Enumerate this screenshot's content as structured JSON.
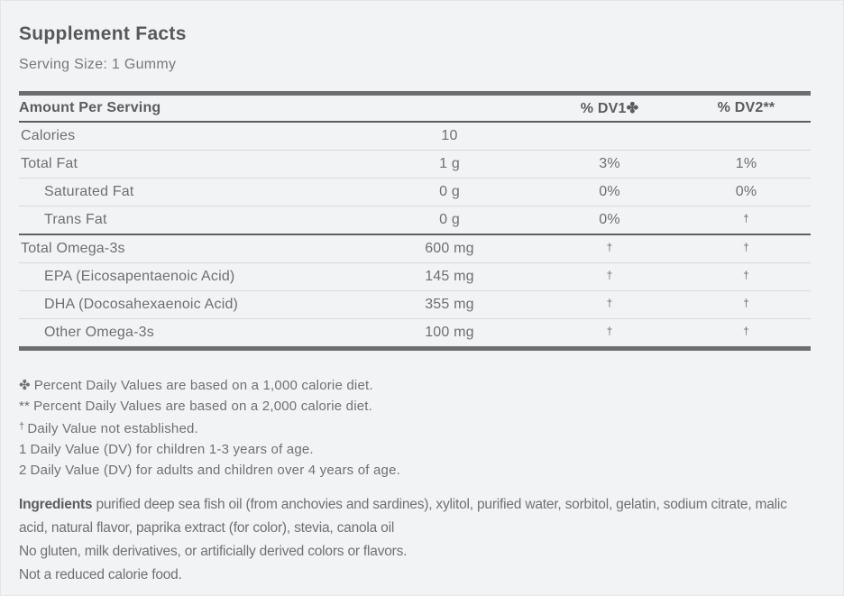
{
  "colors": {
    "background": "#f2f3f4",
    "heading_text": "#58585b",
    "body_text": "#6e6f72",
    "thick_rule": "#6d6e71",
    "dark_rule": "#606165",
    "thin_rule": "#d9dadb"
  },
  "header": {
    "title": "Supplement Facts",
    "serving_size": "Serving Size: 1 Gummy"
  },
  "table": {
    "amount_header": "Amount Per Serving",
    "dv1_header": "% DV1✤",
    "dv2_header": "% DV2**",
    "rows": [
      {
        "label": "Calories",
        "indent": false,
        "amount": "10",
        "dv1": "",
        "dv2": "",
        "divider": "thin"
      },
      {
        "label": "Total Fat",
        "indent": false,
        "amount": "1 g",
        "dv1": "3%",
        "dv2": "1%",
        "divider": "thin"
      },
      {
        "label": "Saturated Fat",
        "indent": true,
        "amount": "0 g",
        "dv1": "0%",
        "dv2": "0%",
        "divider": "thin"
      },
      {
        "label": "Trans Fat",
        "indent": true,
        "amount": "0 g",
        "dv1": "0%",
        "dv2": "†",
        "divider": "dark"
      },
      {
        "label": "Total Omega-3s",
        "indent": false,
        "amount": "600 mg",
        "dv1": "†",
        "dv2": "†",
        "divider": "thin"
      },
      {
        "label": "EPA (Eicosapentaenoic Acid)",
        "indent": true,
        "amount": "145 mg",
        "dv1": "†",
        "dv2": "†",
        "divider": "thin"
      },
      {
        "label": "DHA (Docosahexaenoic Acid)",
        "indent": true,
        "amount": "355 mg",
        "dv1": "†",
        "dv2": "†",
        "divider": "thin"
      },
      {
        "label": "Other Omega-3s",
        "indent": true,
        "amount": "100 mg",
        "dv1": "†",
        "dv2": "†",
        "divider": "none"
      }
    ]
  },
  "footnotes": [
    {
      "symbol": "✤",
      "small_symbol": false,
      "text": "Percent Daily Values are based on a 1,000 calorie diet."
    },
    {
      "symbol": "**",
      "small_symbol": false,
      "text": "Percent Daily Values are based on a 2,000 calorie diet."
    },
    {
      "symbol": "†",
      "small_symbol": true,
      "text": "Daily Value not established."
    },
    {
      "symbol": "1",
      "small_symbol": false,
      "text": "Daily Value (DV) for children 1-3 years of age."
    },
    {
      "symbol": "2",
      "small_symbol": false,
      "text": "Daily Value (DV) for adults and children over 4 years of age."
    }
  ],
  "ingredients": {
    "label": "Ingredients",
    "text": "purified deep sea fish oil (from anchovies and sardines), xylitol, purified water, sorbitol, gelatin, sodium citrate, malic acid, natural flavor, paprika extract (for color), stevia, canola oil",
    "note1": "No gluten, milk derivatives, or artificially derived colors or flavors.",
    "note2": "Not a reduced calorie food."
  }
}
